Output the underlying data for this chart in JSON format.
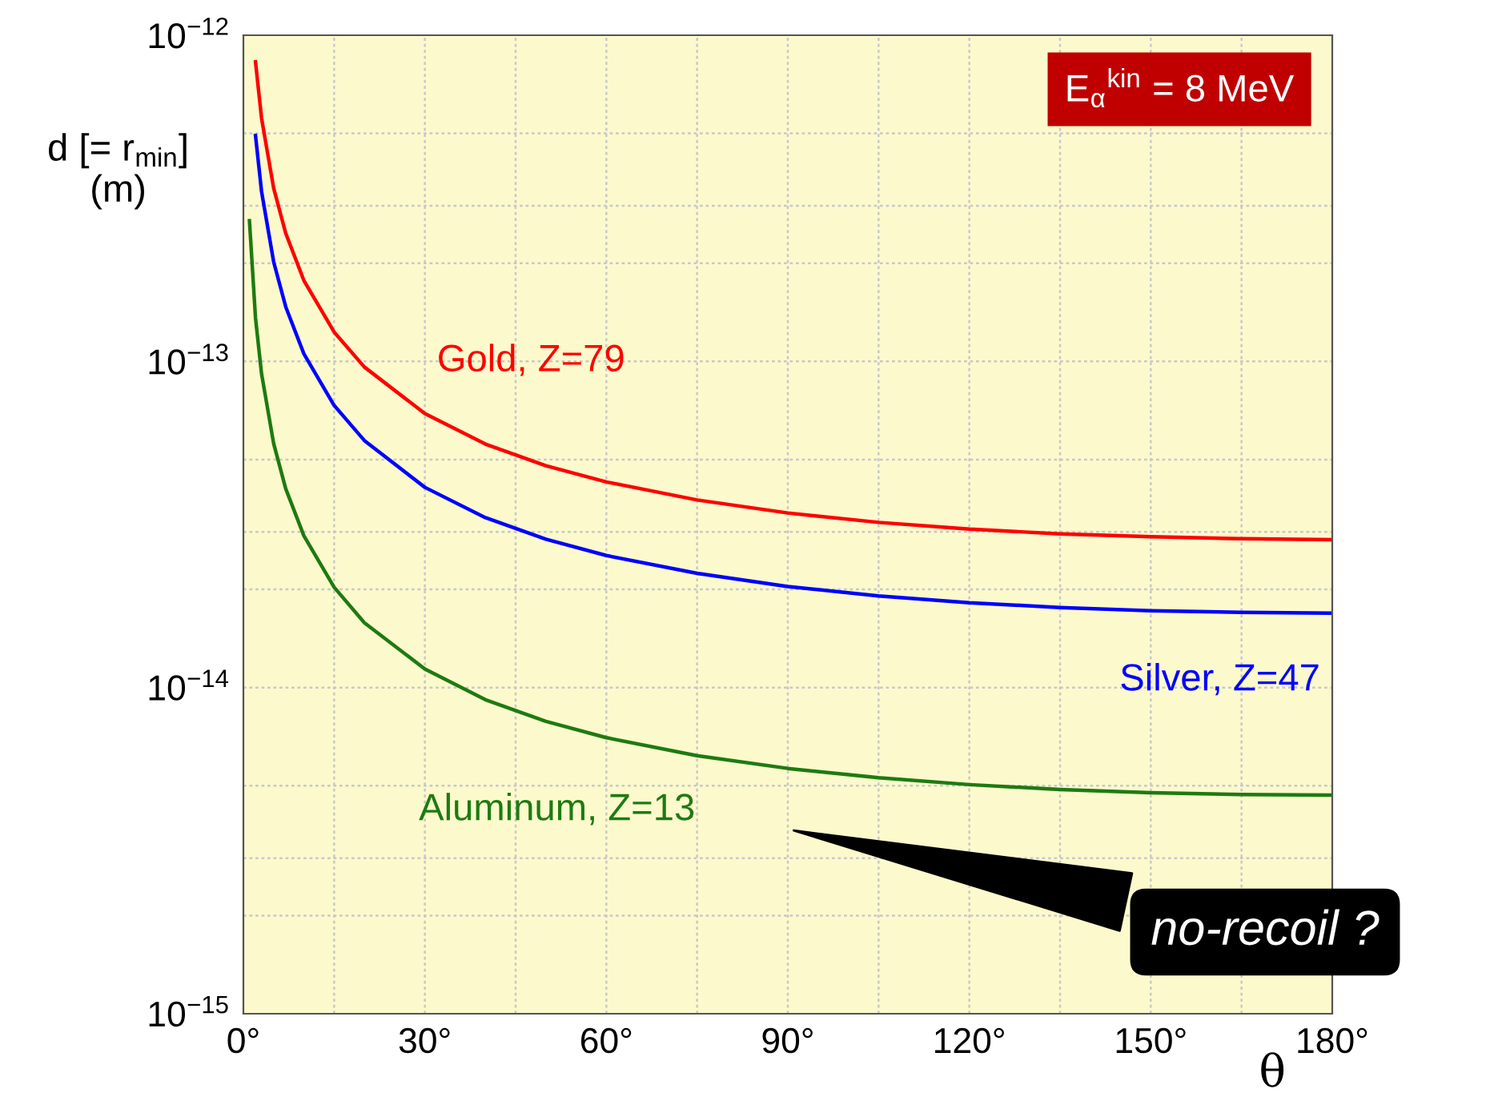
{
  "chart_data": {
    "type": "line",
    "ylabel": "d [= r$_{min}$]\n(m)",
    "xlabel": "θ",
    "x": [
      2,
      3,
      5,
      7,
      10,
      15,
      20,
      30,
      40,
      50,
      60,
      75,
      90,
      105,
      120,
      135,
      150,
      165,
      180
    ],
    "series": [
      {
        "name": "Gold, Z=79",
        "color": "#ff0000",
        "values": [
          8.29e-13,
          5.57e-13,
          3.4e-13,
          2.47e-13,
          1.77e-13,
          1.23e-13,
          9.61e-14,
          6.92e-14,
          5.58e-14,
          4.79e-14,
          4.27e-14,
          3.76e-14,
          3.43e-14,
          3.21e-14,
          3.06e-14,
          2.96e-14,
          2.9e-14,
          2.86e-14,
          2.84e-14
        ]
      },
      {
        "name": "Silver, Z=47",
        "color": "#0000ff",
        "values": [
          4.93e-13,
          3.32e-13,
          2.02e-13,
          1.47e-13,
          1.055e-13,
          7.33e-14,
          5.72e-14,
          4.11e-14,
          3.32e-14,
          2.85e-14,
          2.54e-14,
          2.24e-14,
          2.04e-14,
          1.91e-14,
          1.82e-14,
          1.76e-14,
          1.72e-14,
          1.7e-14,
          1.69e-14
        ]
      },
      {
        "name": "Aluminum, Z=13",
        "color": "#1e7a12",
        "x": [
          1,
          2,
          3,
          5,
          7,
          10,
          15,
          20,
          30,
          40,
          50,
          60,
          75,
          90,
          105,
          120,
          135,
          150,
          165,
          180
        ],
        "values": [
          2.7e-13,
          1.36e-13,
          9.17e-14,
          5.6e-14,
          4.07e-14,
          2.92e-14,
          2.03e-14,
          1.58e-14,
          1.14e-14,
          9.18e-15,
          7.88e-15,
          7.02e-15,
          6.18e-15,
          5.65e-15,
          5.29e-15,
          5.04e-15,
          4.87e-15,
          4.76e-15,
          4.7e-15,
          4.68e-15
        ]
      }
    ],
    "log": "y",
    "xlim": [
      0,
      180
    ],
    "ylim": [
      1e-15,
      1e-12
    ],
    "xticks": [
      {
        "value": 0,
        "label": "0°"
      },
      {
        "value": 30,
        "label": "30°"
      },
      {
        "value": 60,
        "label": "60°"
      },
      {
        "value": 90,
        "label": "90°"
      },
      {
        "value": 120,
        "label": "120°"
      },
      {
        "value": 150,
        "label": "150°"
      },
      {
        "value": 180,
        "label": "180°"
      }
    ],
    "yticks": [
      {
        "value": 1e-15,
        "label": "10$^{−15}$"
      },
      {
        "value": 1e-14,
        "label": "10$^{−14}$"
      },
      {
        "value": 1e-13,
        "label": "10$^{−13}$"
      },
      {
        "value": 1e-12,
        "label": "10$^{−12}$"
      }
    ],
    "grid": true,
    "annotations": [
      "E$_{α}$$^{kin}$ = 8 MeV",
      "no-recoil ?"
    ]
  }
}
